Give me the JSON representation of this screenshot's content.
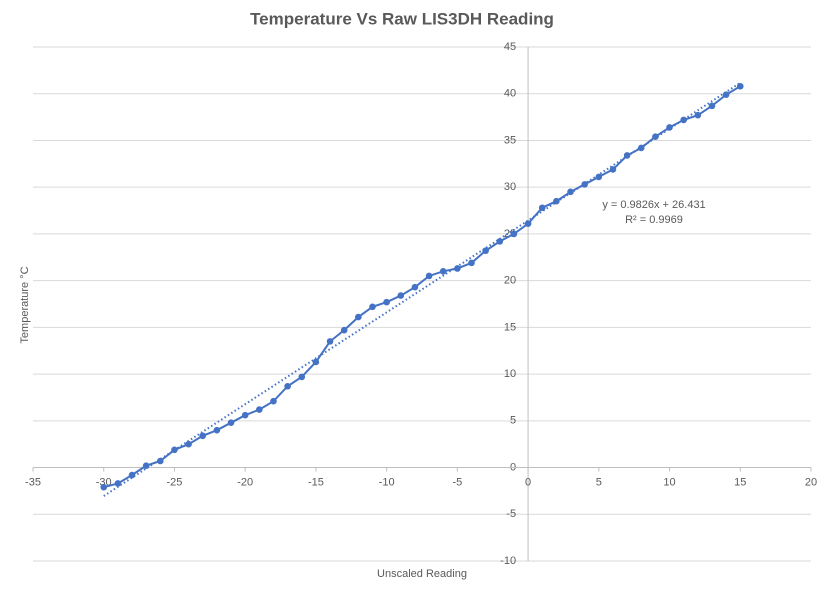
{
  "chart_data": {
    "type": "scatter",
    "title": "Temperature Vs Raw LIS3DH Reading",
    "x_label": "Unscaled Reading",
    "y_label": "Temperature °C",
    "x": [
      -30,
      -29,
      -28,
      -27,
      -26,
      -25,
      -24,
      -23,
      -22,
      -21,
      -20,
      -19,
      -18,
      -17,
      -16,
      -15,
      -14,
      -13,
      -12,
      -11,
      -10,
      -9,
      -8,
      -7,
      -6,
      -5,
      -4,
      -3,
      -2,
      -1,
      0,
      1,
      2,
      3,
      4,
      5,
      6,
      7,
      8,
      9,
      10,
      11,
      12,
      13,
      14,
      15
    ],
    "series": [
      {
        "color": "#4472c4",
        "values": [
          -2.1,
          -1.7,
          -0.8,
          0.2,
          0.7,
          1.9,
          2.5,
          3.4,
          4.0,
          4.8,
          5.6,
          6.2,
          7.1,
          8.7,
          9.7,
          11.3,
          13.5,
          14.7,
          16.1,
          17.2,
          17.7,
          18.4,
          19.3,
          20.5,
          21.0,
          21.3,
          21.9,
          23.2,
          24.2,
          25.0,
          26.1,
          27.8,
          28.5,
          29.5,
          30.3,
          31.1,
          31.9,
          33.4,
          34.2,
          35.4,
          36.4,
          37.2,
          37.7,
          38.7,
          39.9,
          40.8
        ]
      }
    ],
    "trendline": {
      "slope": 0.9826,
      "intercept": 26.431,
      "equation": "y = 0.9826x + 26.431",
      "r_squared_label": "R² = 0.9969"
    },
    "xlim": [
      -35,
      20
    ],
    "xticks": [
      -35,
      -30,
      -25,
      -20,
      -15,
      -10,
      -5,
      0,
      5,
      10,
      15,
      20
    ],
    "ylim": [
      -10,
      45
    ],
    "yticks": [
      -10,
      -5,
      0,
      5,
      10,
      15,
      20,
      25,
      30,
      35,
      40,
      45
    ],
    "grid": true
  }
}
